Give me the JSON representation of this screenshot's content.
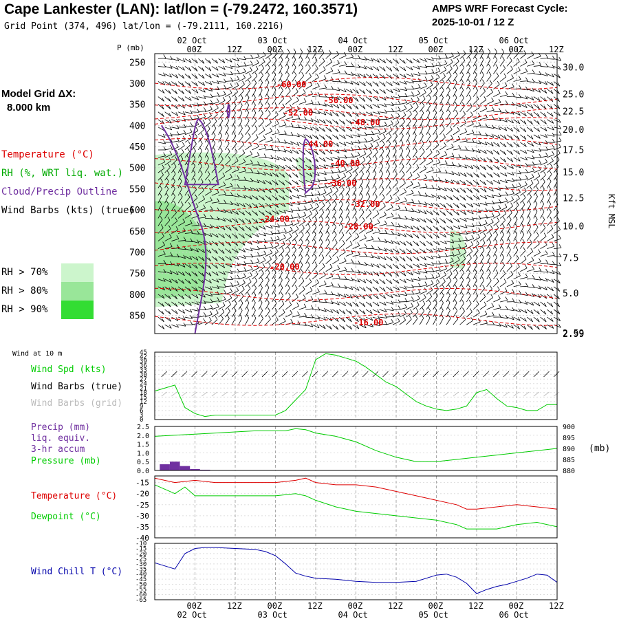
{
  "header": {
    "title": "Cape Lankester (LAN):  lat/lon = (-79.2472, 160.3571)",
    "subtitle": "Grid Point (374, 496) lat/lon = (-79.2111, 160.2216)",
    "cycle_line1": "AMPS WRF Forecast Cycle:",
    "cycle_line2": "2025-10-01 / 12  Z",
    "grid_label": "Model Grid ΔX:",
    "grid_value": "8.000 km"
  },
  "legend": {
    "temperature": "Temperature (°C)",
    "rh": "RH (%, WRT liq. wat.)",
    "cloud": "Cloud/Precip Outline",
    "wind": "Wind Barbs (kts) (true)",
    "rh70": "RH > 70%",
    "rh80": "RH > 80%",
    "rh90": "RH > 90%",
    "colors": {
      "temperature": "#dd0000",
      "rh": "#00aa00",
      "cloud": "#7030a0",
      "wind": "#000000",
      "rh70": "#ccf5cc",
      "rh80": "#99e699",
      "rh90": "#33dd33"
    }
  },
  "time_axis": {
    "ticks": [
      "00Z",
      "12Z",
      "00Z",
      "12Z",
      "00Z",
      "12Z",
      "00Z",
      "12Z",
      "00Z",
      "12Z"
    ],
    "tick_hours": [
      12,
      24,
      36,
      48,
      60,
      72,
      84,
      96,
      108,
      120
    ],
    "dates": [
      "02 Oct",
      "03 Oct",
      "04 Oct",
      "05 Oct",
      "06 Oct"
    ],
    "date_hours": [
      12,
      36,
      60,
      84,
      108
    ],
    "range_hours": [
      0,
      120
    ]
  },
  "chart_data": [
    {
      "name": "time-height cross section",
      "type": "heatmap",
      "ylabel_left": "P (mb)",
      "ylabel_right": "Kft MSL",
      "p_ticks": [
        250,
        300,
        350,
        400,
        450,
        500,
        550,
        600,
        650,
        700,
        750,
        800,
        850
      ],
      "ylim_p": [
        230,
        893
      ],
      "kft_ticks": [
        {
          "label": "30.0",
          "p": 262
        },
        {
          "label": "25.0",
          "p": 325
        },
        {
          "label": "22.5",
          "p": 366
        },
        {
          "label": "20.0",
          "p": 409
        },
        {
          "label": "17.5",
          "p": 457
        },
        {
          "label": "15.0",
          "p": 510
        },
        {
          "label": "12.5",
          "p": 571
        },
        {
          "label": "10.0",
          "p": 638
        },
        {
          "label": "7.5",
          "p": 713
        },
        {
          "label": "5.0",
          "p": 797
        },
        {
          "label": "2.99",
          "p": 893
        },
        {
          "label": "2.59",
          "p": 893
        }
      ],
      "isotherm_labels": [
        {
          "text": "-60.00",
          "t": 40,
          "p": 303
        },
        {
          "text": "-56.00",
          "t": 54,
          "p": 341
        },
        {
          "text": "-52.00",
          "t": 42,
          "p": 370
        },
        {
          "text": "-48.00",
          "t": 62,
          "p": 393
        },
        {
          "text": "-44.00",
          "t": 48,
          "p": 444
        },
        {
          "text": "-40.00",
          "t": 56,
          "p": 490
        },
        {
          "text": "-36.00",
          "t": 55,
          "p": 537
        },
        {
          "text": "-32.00",
          "t": 62,
          "p": 587
        },
        {
          "text": "-28.00",
          "t": 60,
          "p": 640
        },
        {
          "text": "-24.00",
          "t": 35,
          "p": 622
        },
        {
          "text": "-20.00",
          "t": 38,
          "p": 735
        },
        {
          "text": "-16.00",
          "t": 63,
          "p": 867
        }
      ]
    },
    {
      "name": "wind at 10 m",
      "type": "line",
      "small_label": "Wind at 10 m",
      "label_speed": "Wind Spd (kts)",
      "label_true": "Wind Barbs (true)",
      "label_grid": "Wind Barbs (grid)",
      "yticks": [
        45,
        42,
        39,
        36,
        33,
        30,
        27,
        24,
        21,
        18,
        15,
        12,
        9,
        6,
        3,
        0
      ],
      "ylim": [
        0,
        45
      ],
      "series": [
        {
          "name": "Wind Spd",
          "color": "#00cc00",
          "x": [
            0,
            6,
            9,
            12,
            15,
            18,
            24,
            30,
            36,
            39,
            45,
            48,
            51,
            54,
            57,
            60,
            63,
            66,
            69,
            72,
            75,
            78,
            81,
            84,
            87,
            90,
            93,
            96,
            99,
            102,
            105,
            108,
            111,
            114,
            117,
            120
          ],
          "values": [
            19,
            23,
            8,
            4,
            2,
            3,
            3,
            3,
            3,
            6,
            20,
            40,
            44,
            43,
            41,
            39,
            35,
            30,
            25,
            22,
            17,
            12,
            9,
            7,
            6,
            7,
            9,
            18,
            20,
            14,
            9,
            8,
            6,
            6,
            10,
            10
          ]
        }
      ]
    },
    {
      "name": "precip and pressure",
      "type": "bar",
      "label_precip": "Precip (mm)",
      "label_liq": "liq. equiv.",
      "label_accum": "3-hr accum",
      "label_pressure": "Pressure (mb)",
      "right_unit": "(mb)",
      "yticks_precip": [
        2.5,
        2.0,
        1.5,
        1.0,
        0.5,
        0.0
      ],
      "yticks_pressure": [
        900,
        895,
        890,
        885,
        880
      ],
      "ylim_precip": [
        0,
        2.5
      ],
      "ylim_pressure": [
        880,
        900
      ],
      "precip": {
        "x": [
          3,
          6,
          9,
          12,
          15
        ],
        "values": [
          0.35,
          0.5,
          0.25,
          0.08,
          0.04
        ],
        "color": "#7030a0"
      },
      "pressure": {
        "color": "#00cc00",
        "x": [
          0,
          6,
          12,
          18,
          24,
          30,
          36,
          39,
          42,
          45,
          48,
          54,
          60,
          66,
          72,
          78,
          84,
          90,
          96,
          102,
          108,
          114,
          120
        ],
        "values": [
          895.5,
          896,
          896.5,
          897,
          897.5,
          898,
          898,
          898,
          899,
          898.5,
          897,
          895.5,
          893,
          889,
          886,
          884,
          884,
          885,
          886,
          887,
          888,
          889,
          890
        ]
      }
    },
    {
      "name": "temperature and dewpoint",
      "type": "line",
      "label_temp": "Temperature (°C)",
      "label_dew": "Dewpoint (°C)",
      "yticks": [
        -15,
        -20,
        -25,
        -30,
        -35,
        -40
      ],
      "ylim": [
        -40,
        -12
      ],
      "series": [
        {
          "name": "Temperature",
          "color": "#dd0000",
          "x": [
            0,
            6,
            12,
            18,
            24,
            30,
            36,
            42,
            45,
            48,
            54,
            60,
            66,
            72,
            78,
            84,
            90,
            93,
            96,
            102,
            108,
            114,
            120
          ],
          "values": [
            -13,
            -15,
            -14,
            -15,
            -15,
            -15,
            -15,
            -14,
            -13,
            -15,
            -16,
            -16,
            -17,
            -19,
            -21,
            -23,
            -25,
            -27,
            -27,
            -26,
            -25,
            -26,
            -27
          ]
        },
        {
          "name": "Dewpoint",
          "color": "#00cc00",
          "x": [
            0,
            6,
            9,
            12,
            18,
            24,
            30,
            36,
            42,
            45,
            48,
            54,
            60,
            66,
            72,
            78,
            84,
            90,
            93,
            96,
            102,
            108,
            114,
            120
          ],
          "values": [
            -16,
            -20,
            -17,
            -21,
            -21,
            -21,
            -21,
            -21,
            -20,
            -21,
            -23,
            -26,
            -28,
            -29,
            -30,
            -31,
            -32,
            -34,
            -36,
            -36,
            -36,
            -34,
            -33,
            -35
          ]
        }
      ]
    },
    {
      "name": "wind chill",
      "type": "line",
      "label_wc": "Wind Chill T (°C)",
      "yticks": [
        -10,
        -15,
        -20,
        -25,
        -30,
        -35,
        -40,
        -45,
        -50,
        -55,
        -60,
        -65
      ],
      "ylim": [
        -65,
        -10
      ],
      "series": [
        {
          "name": "Wind Chill",
          "color": "#0000aa",
          "x": [
            0,
            6,
            9,
            12,
            15,
            18,
            24,
            30,
            33,
            36,
            39,
            42,
            45,
            48,
            54,
            60,
            66,
            72,
            78,
            84,
            87,
            90,
            93,
            96,
            99,
            102,
            105,
            108,
            111,
            114,
            117,
            120
          ],
          "values": [
            -29,
            -35,
            -20,
            -15,
            -14,
            -14,
            -15,
            -16,
            -18,
            -22,
            -30,
            -39,
            -42,
            -44,
            -45,
            -47,
            -48,
            -48,
            -47,
            -41,
            -40,
            -43,
            -49,
            -59,
            -55,
            -52,
            -50,
            -47,
            -44,
            -40,
            -41,
            -48
          ]
        }
      ]
    }
  ]
}
